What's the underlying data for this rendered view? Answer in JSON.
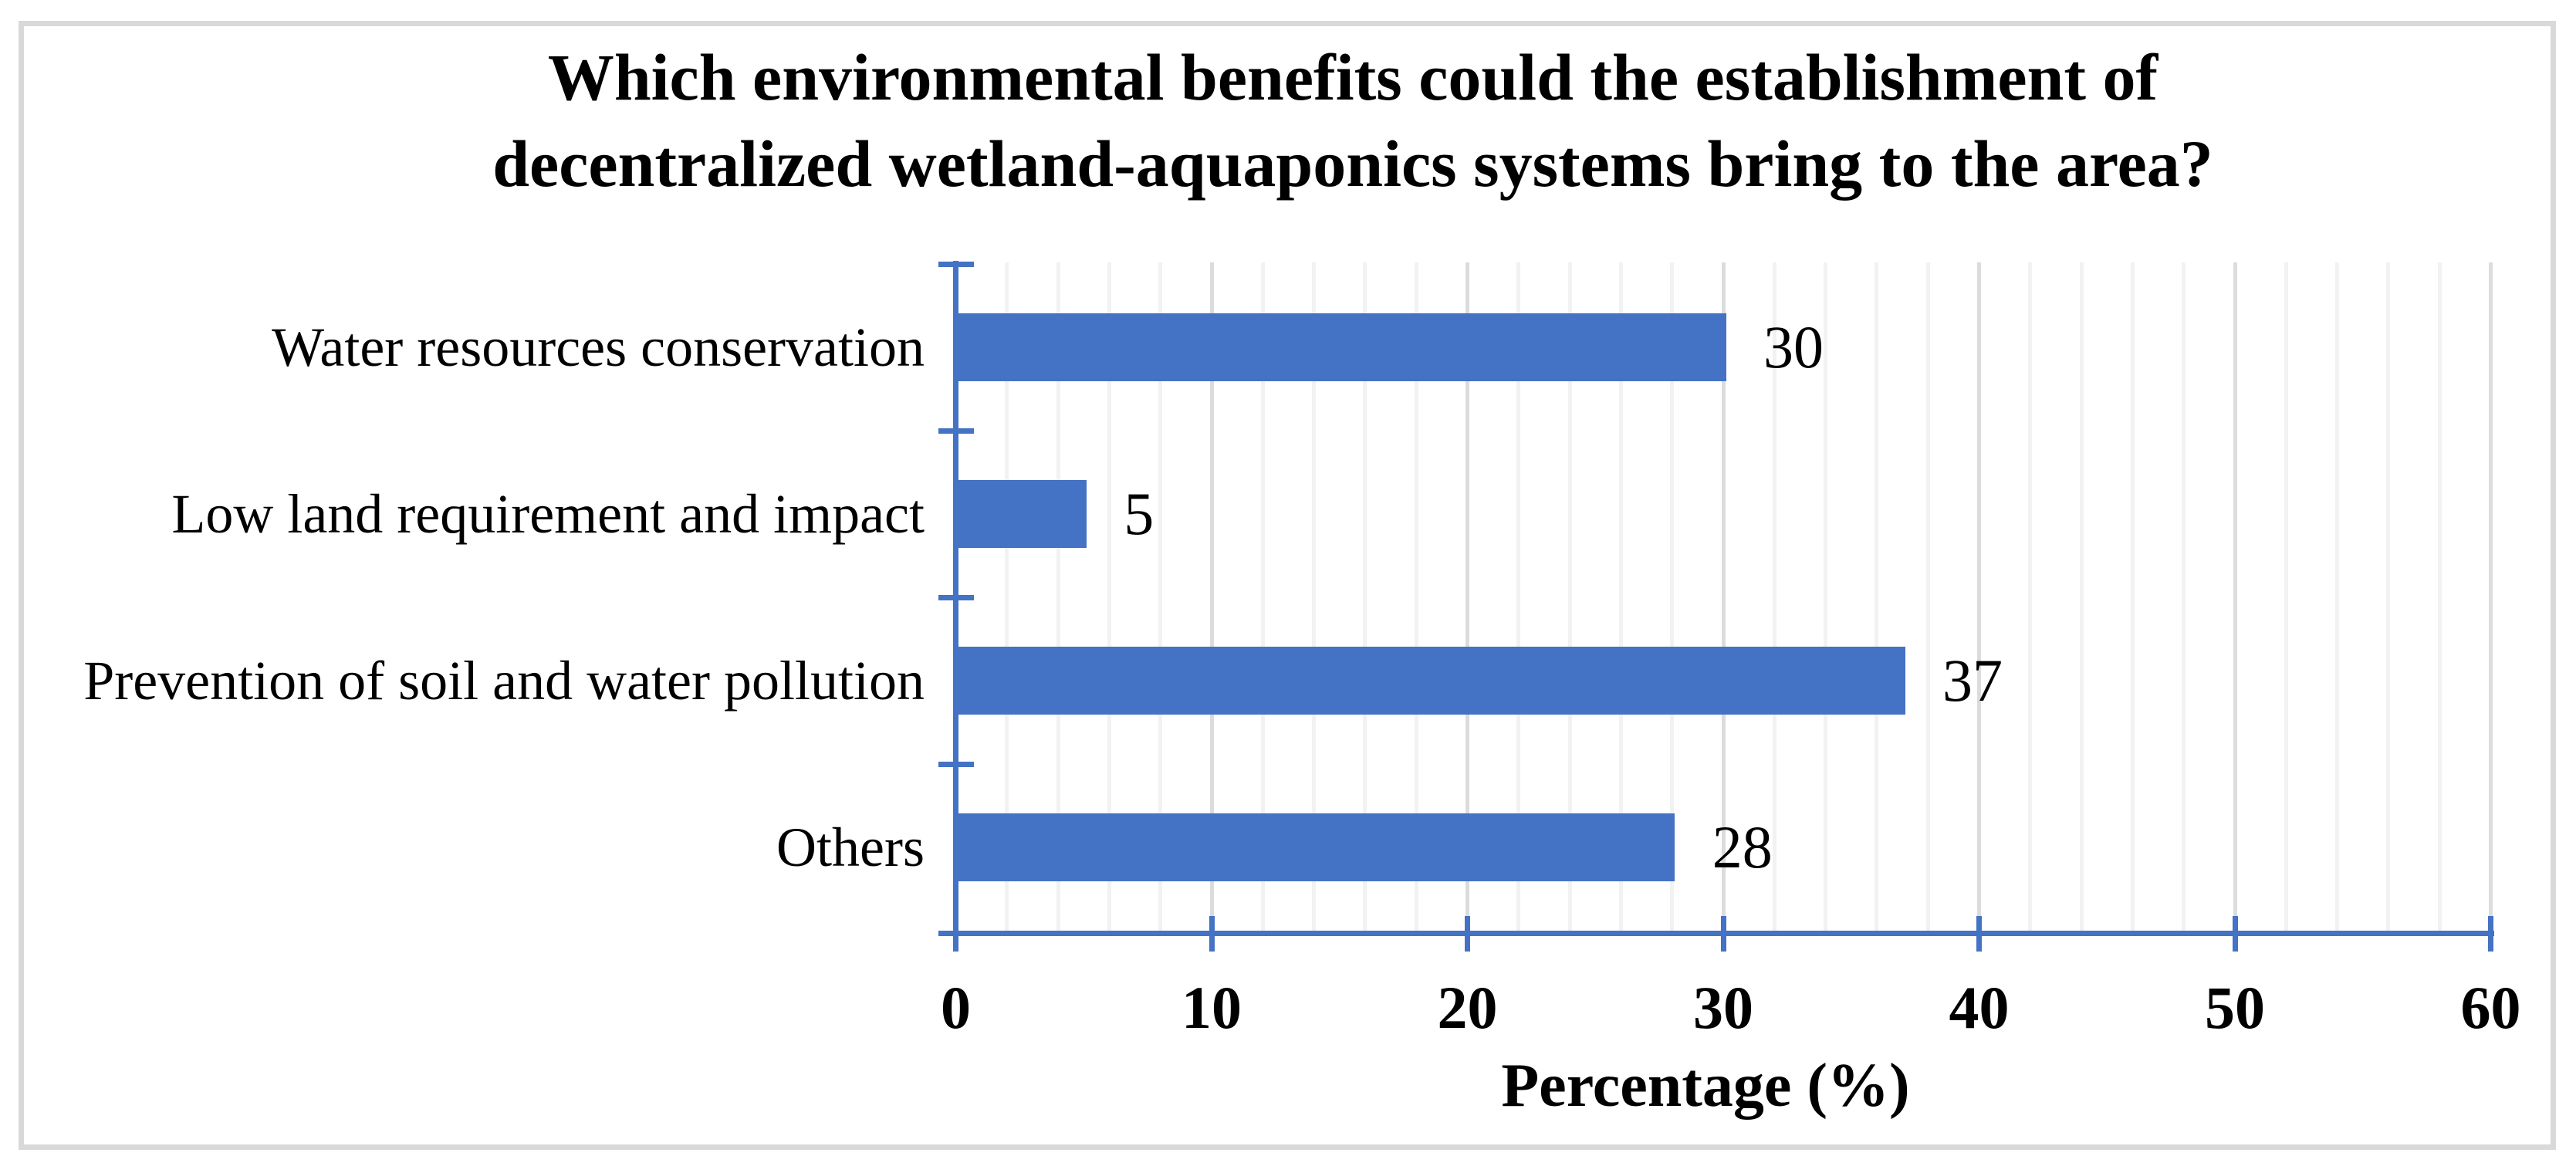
{
  "chart_data": {
    "type": "bar",
    "orientation": "horizontal",
    "title": "Which environmental benefits could the establishment of decentralized wetland-aquaponics systems bring to the area?",
    "title_lines": [
      "Which environmental benefits could the establishment of",
      "decentralized wetland-aquaponics systems bring to the area?"
    ],
    "categories": [
      "Water resources conservation",
      "Low land requirement and impact",
      "Prevention of soil and water pollution",
      "Others"
    ],
    "values": [
      30,
      5,
      37,
      28
    ],
    "data_labels": [
      "30",
      "5",
      "37",
      "28"
    ],
    "xlabel": "Percentage (%)",
    "xlim": [
      0,
      60
    ],
    "x_major_ticks": [
      0,
      10,
      20,
      30,
      40,
      50,
      60
    ],
    "x_major_unit": 10,
    "x_minor_unit": 2,
    "grid": true,
    "legend": "none",
    "colors": {
      "bar": "#4472C4",
      "axis": "#4472C4",
      "major_gridline": "#DCDCDC",
      "minor_gridline": "#F2F2F2",
      "text": "#000000",
      "frame_border": "#D9D9D9",
      "background": "#FFFFFF"
    }
  }
}
